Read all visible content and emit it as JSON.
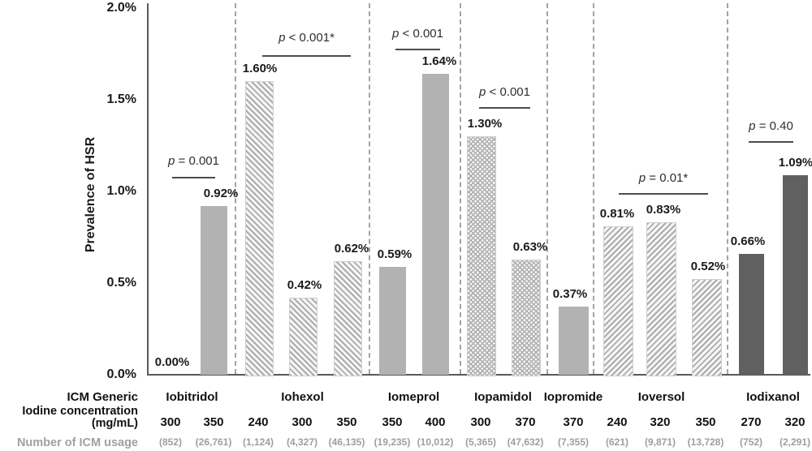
{
  "chart_data": {
    "type": "bar",
    "title": "",
    "ylabel": "Prevalence of HSR",
    "xlabel": "",
    "ylim": [
      0,
      2.0
    ],
    "ytick_labels": [
      "0.0%",
      "0.5%",
      "1.0%",
      "1.5%",
      "2.0%"
    ],
    "grid": false,
    "legend": "none",
    "row_labels": {
      "generic": "ICM Generic",
      "concentration_line1": "Iodine concentration",
      "concentration_line2": "(mg/mL)",
      "usage": "Number of ICM usage"
    },
    "groups": [
      {
        "name": "Iobitridol",
        "p_label": "p = 0.001",
        "style": "solid-gray",
        "bars": [
          {
            "concentration": "300",
            "usage": "(852)",
            "value": 0.0,
            "value_label": "0.00%"
          },
          {
            "concentration": "350",
            "usage": "(26,761)",
            "value": 0.92,
            "value_label": "0.92%"
          }
        ]
      },
      {
        "name": "Iohexol",
        "p_label": "p < 0.001*",
        "style": "hatch-down",
        "bars": [
          {
            "concentration": "240",
            "usage": "(1,124)",
            "value": 1.6,
            "value_label": "1.60%"
          },
          {
            "concentration": "300",
            "usage": "(4,327)",
            "value": 0.42,
            "value_label": "0.42%"
          },
          {
            "concentration": "350",
            "usage": "(46,135)",
            "value": 0.62,
            "value_label": "0.62%"
          }
        ]
      },
      {
        "name": "Iomeprol",
        "p_label": "p < 0.001",
        "style": "solid-gray",
        "bars": [
          {
            "concentration": "350",
            "usage": "(19,235)",
            "value": 0.59,
            "value_label": "0.59%"
          },
          {
            "concentration": "400",
            "usage": "(10,012)",
            "value": 1.64,
            "value_label": "1.64%"
          }
        ]
      },
      {
        "name": "Iopamidol",
        "p_label": "p < 0.001",
        "style": "hatch-cross",
        "bars": [
          {
            "concentration": "300",
            "usage": "(5,365)",
            "value": 1.3,
            "value_label": "1.30%"
          },
          {
            "concentration": "370",
            "usage": "(47,632)",
            "value": 0.63,
            "value_label": "0.63%"
          }
        ]
      },
      {
        "name": "Iopromide",
        "p_label": null,
        "style": "solid-gray",
        "bars": [
          {
            "concentration": "370",
            "usage": "(7,355)",
            "value": 0.37,
            "value_label": "0.37%"
          }
        ]
      },
      {
        "name": "Ioversol",
        "p_label": "p = 0.01*",
        "style": "hatch-up",
        "bars": [
          {
            "concentration": "240",
            "usage": "(621)",
            "value": 0.81,
            "value_label": "0.81%"
          },
          {
            "concentration": "320",
            "usage": "(9,871)",
            "value": 0.83,
            "value_label": "0.83%"
          },
          {
            "concentration": "350",
            "usage": "(13,728)",
            "value": 0.52,
            "value_label": "0.52%"
          }
        ]
      },
      {
        "name": "Iodixanol",
        "p_label": "p = 0.40",
        "style": "solid-dark",
        "bars": [
          {
            "concentration": "270",
            "usage": "(752)",
            "value": 0.66,
            "value_label": "0.66%"
          },
          {
            "concentration": "320",
            "usage": "(2,291)",
            "value": 1.09,
            "value_label": "1.09%"
          }
        ]
      }
    ],
    "colors": {
      "bar_gray": "#b2b2b2",
      "bar_dark": "#606060",
      "hatch_stroke": "#ababab",
      "axis": "#595959",
      "divider": "#a3a3a3",
      "usage_text": "#9e9e9e",
      "text": "#1a1a1a"
    }
  }
}
